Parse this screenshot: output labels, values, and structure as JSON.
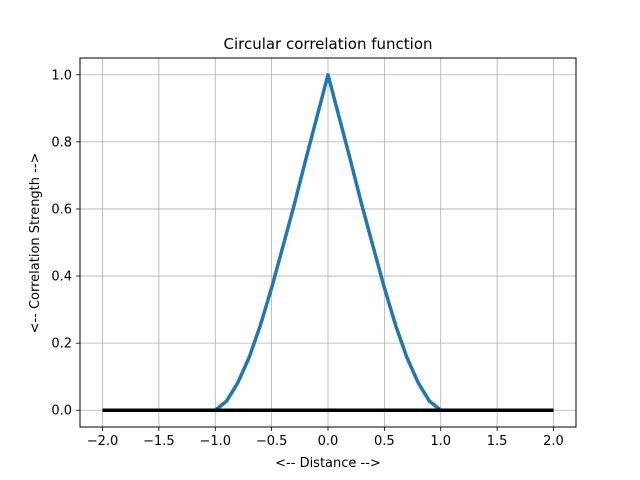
{
  "chart_data": {
    "type": "line",
    "title": "Circular correlation function",
    "xlabel": "<-- Distance -->",
    "ylabel": "<-- Correlation Strength -->",
    "xlim": [
      -2.2,
      2.2
    ],
    "ylim": [
      -0.05,
      1.05
    ],
    "xticks": [
      -2.0,
      -1.5,
      -1.0,
      -0.5,
      0.0,
      0.5,
      1.0,
      1.5,
      2.0
    ],
    "xtick_labels": [
      "−2.0",
      "−1.5",
      "−1.0",
      "−0.5",
      "0.0",
      "0.5",
      "1.0",
      "1.5",
      "2.0"
    ],
    "yticks": [
      0.0,
      0.2,
      0.4,
      0.6,
      0.8,
      1.0
    ],
    "ytick_labels": [
      "0.0",
      "0.2",
      "0.4",
      "0.6",
      "0.8",
      "1.0"
    ],
    "grid": true,
    "series": [
      {
        "color": "#1f77b4",
        "x": [
          -2.0,
          -1.5,
          -1.0,
          -0.9,
          -0.8,
          -0.7,
          -0.6,
          -0.5,
          -0.4,
          -0.3,
          -0.2,
          -0.1,
          0.0,
          0.1,
          0.2,
          0.3,
          0.4,
          0.5,
          0.6,
          0.7,
          0.8,
          0.9,
          1.0,
          1.5,
          2.0
        ],
        "y": [
          0.0,
          0.0,
          0.0,
          0.027,
          0.082,
          0.157,
          0.253,
          0.365,
          0.488,
          0.612,
          0.744,
          0.872,
          1.0,
          0.872,
          0.744,
          0.612,
          0.488,
          0.365,
          0.253,
          0.157,
          0.082,
          0.027,
          0.0,
          0.0,
          0.0
        ]
      },
      {
        "color": "#000000",
        "x": [
          -2.0,
          2.0
        ],
        "y": [
          0.0,
          0.0
        ]
      }
    ]
  }
}
